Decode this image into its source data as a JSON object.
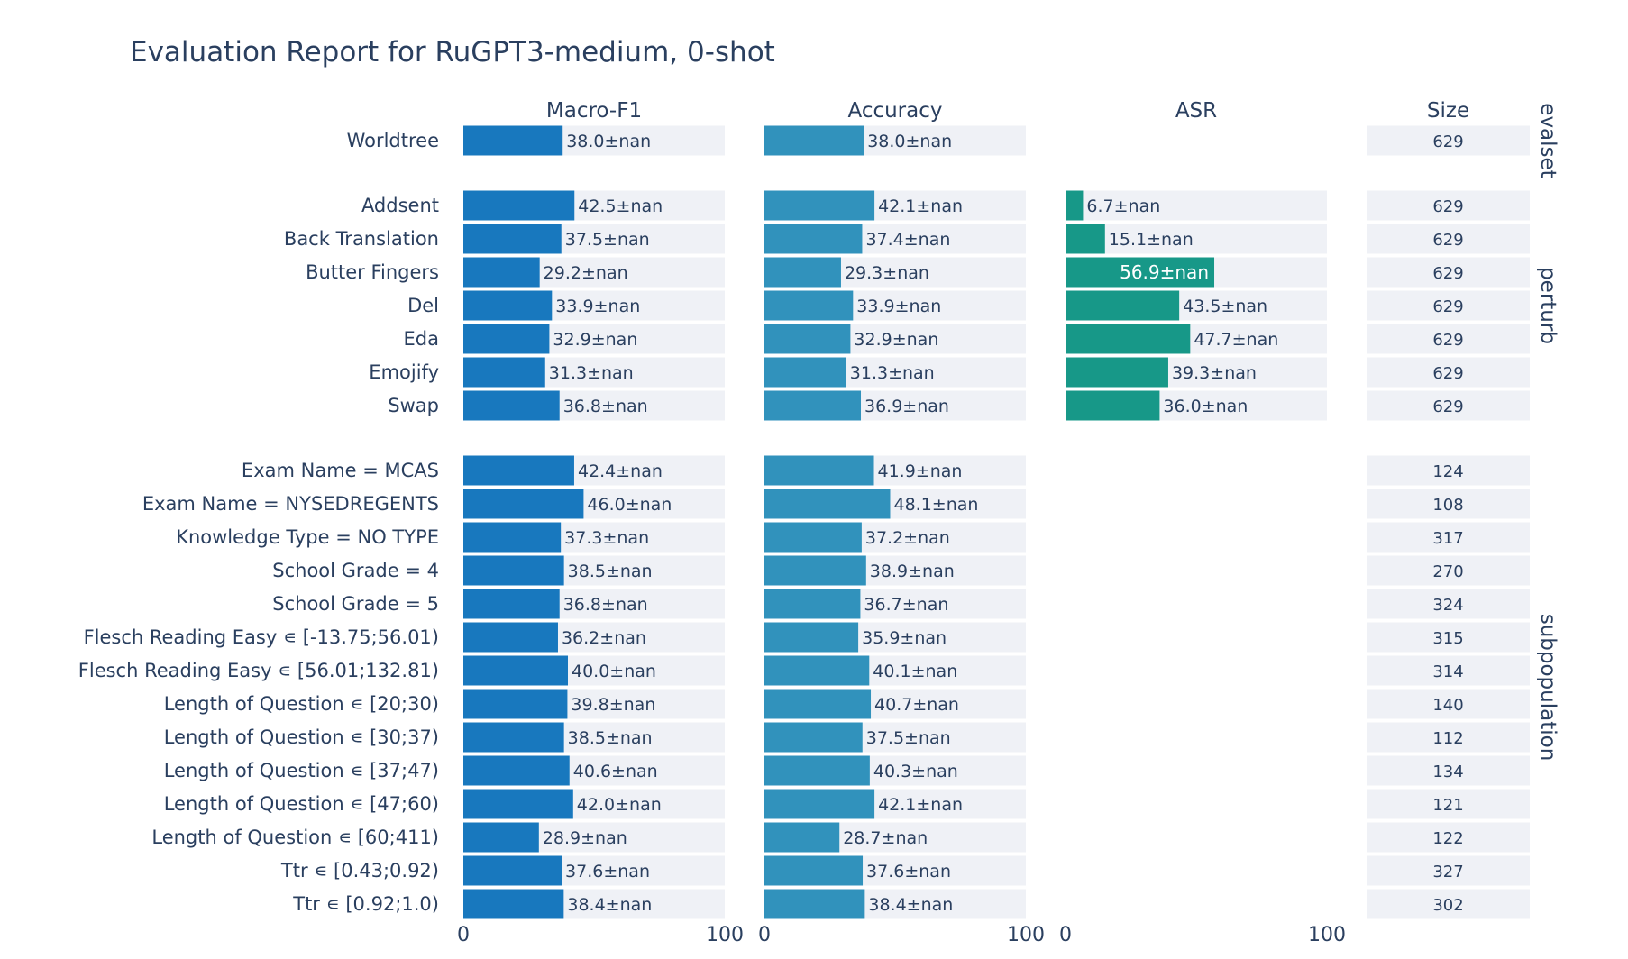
{
  "chart_data": {
    "type": "bar",
    "title": "Evaluation Report for RuGPT3-medium, 0-shot",
    "columns": [
      "Macro-F1",
      "Accuracy",
      "ASR",
      "Size"
    ],
    "xlim": [
      0,
      100
    ],
    "ticks": [
      "0",
      "100"
    ],
    "colors": {
      "f1": "#1878be",
      "acc": "#3192bc",
      "asr": "#179888",
      "bg": "#eff1f6",
      "text": "#2a3f5f",
      "white": "#ffffff"
    },
    "groups": [
      {
        "name": "evalset",
        "rows": [
          {
            "label": "Worldtree",
            "f1": 38.0,
            "f1_label": "38.0±nan",
            "acc": 38.0,
            "acc_label": "38.0±nan",
            "asr": null,
            "asr_label": "",
            "size": "629"
          }
        ]
      },
      {
        "name": "perturb",
        "rows": [
          {
            "label": "Addsent",
            "f1": 42.5,
            "f1_label": "42.5±nan",
            "acc": 42.1,
            "acc_label": "42.1±nan",
            "asr": 6.7,
            "asr_label": "6.7±nan",
            "size": "629"
          },
          {
            "label": "Back Translation",
            "f1": 37.5,
            "f1_label": "37.5±nan",
            "acc": 37.4,
            "acc_label": "37.4±nan",
            "asr": 15.1,
            "asr_label": "15.1±nan",
            "size": "629"
          },
          {
            "label": "Butter Fingers",
            "f1": 29.2,
            "f1_label": "29.2±nan",
            "acc": 29.3,
            "acc_label": "29.3±nan",
            "asr": 56.9,
            "asr_label": "56.9±nan",
            "size": "629"
          },
          {
            "label": "Del",
            "f1": 33.9,
            "f1_label": "33.9±nan",
            "acc": 33.9,
            "acc_label": "33.9±nan",
            "asr": 43.5,
            "asr_label": "43.5±nan",
            "size": "629"
          },
          {
            "label": "Eda",
            "f1": 32.9,
            "f1_label": "32.9±nan",
            "acc": 32.9,
            "acc_label": "32.9±nan",
            "asr": 47.7,
            "asr_label": "47.7±nan",
            "size": "629"
          },
          {
            "label": "Emojify",
            "f1": 31.3,
            "f1_label": "31.3±nan",
            "acc": 31.3,
            "acc_label": "31.3±nan",
            "asr": 39.3,
            "asr_label": "39.3±nan",
            "size": "629"
          },
          {
            "label": "Swap",
            "f1": 36.8,
            "f1_label": "36.8±nan",
            "acc": 36.9,
            "acc_label": "36.9±nan",
            "asr": 36.0,
            "asr_label": "36.0±nan",
            "size": "629"
          }
        ]
      },
      {
        "name": "subpopulation",
        "rows": [
          {
            "label": "Exam Name = MCAS",
            "f1": 42.4,
            "f1_label": "42.4±nan",
            "acc": 41.9,
            "acc_label": "41.9±nan",
            "asr": null,
            "asr_label": "",
            "size": "124"
          },
          {
            "label": "Exam Name = NYSEDREGENTS",
            "f1": 46.0,
            "f1_label": "46.0±nan",
            "acc": 48.1,
            "acc_label": "48.1±nan",
            "asr": null,
            "asr_label": "",
            "size": "108"
          },
          {
            "label": "Knowledge Type = NO TYPE",
            "f1": 37.3,
            "f1_label": "37.3±nan",
            "acc": 37.2,
            "acc_label": "37.2±nan",
            "asr": null,
            "asr_label": "",
            "size": "317"
          },
          {
            "label": "School Grade = 4",
            "f1": 38.5,
            "f1_label": "38.5±nan",
            "acc": 38.9,
            "acc_label": "38.9±nan",
            "asr": null,
            "asr_label": "",
            "size": "270"
          },
          {
            "label": "School Grade = 5",
            "f1": 36.8,
            "f1_label": "36.8±nan",
            "acc": 36.7,
            "acc_label": "36.7±nan",
            "asr": null,
            "asr_label": "",
            "size": "324"
          },
          {
            "label": "Flesch Reading Easy ∊ [-13.75;56.01)",
            "f1": 36.2,
            "f1_label": "36.2±nan",
            "acc": 35.9,
            "acc_label": "35.9±nan",
            "asr": null,
            "asr_label": "",
            "size": "315"
          },
          {
            "label": "Flesch Reading Easy ∊ [56.01;132.81)",
            "f1": 40.0,
            "f1_label": "40.0±nan",
            "acc": 40.1,
            "acc_label": "40.1±nan",
            "asr": null,
            "asr_label": "",
            "size": "314"
          },
          {
            "label": "Length of Question ∊ [20;30)",
            "f1": 39.8,
            "f1_label": "39.8±nan",
            "acc": 40.7,
            "acc_label": "40.7±nan",
            "asr": null,
            "asr_label": "",
            "size": "140"
          },
          {
            "label": "Length of Question ∊ [30;37)",
            "f1": 38.5,
            "f1_label": "38.5±nan",
            "acc": 37.5,
            "acc_label": "37.5±nan",
            "asr": null,
            "asr_label": "",
            "size": "112"
          },
          {
            "label": "Length of Question ∊ [37;47)",
            "f1": 40.6,
            "f1_label": "40.6±nan",
            "acc": 40.3,
            "acc_label": "40.3±nan",
            "asr": null,
            "asr_label": "",
            "size": "134"
          },
          {
            "label": "Length of Question ∊ [47;60)",
            "f1": 42.0,
            "f1_label": "42.0±nan",
            "acc": 42.1,
            "acc_label": "42.1±nan",
            "asr": null,
            "asr_label": "",
            "size": "121"
          },
          {
            "label": "Length of Question ∊ [60;411)",
            "f1": 28.9,
            "f1_label": "28.9±nan",
            "acc": 28.7,
            "acc_label": "28.7±nan",
            "asr": null,
            "asr_label": "",
            "size": "122"
          },
          {
            "label": "Ttr ∊ [0.43;0.92)",
            "f1": 37.6,
            "f1_label": "37.6±nan",
            "acc": 37.6,
            "acc_label": "37.6±nan",
            "asr": null,
            "asr_label": "",
            "size": "327"
          },
          {
            "label": "Ttr ∊ [0.92;1.0)",
            "f1": 38.4,
            "f1_label": "38.4±nan",
            "acc": 38.4,
            "acc_label": "38.4±nan",
            "asr": null,
            "asr_label": "",
            "size": "302"
          }
        ]
      }
    ]
  }
}
